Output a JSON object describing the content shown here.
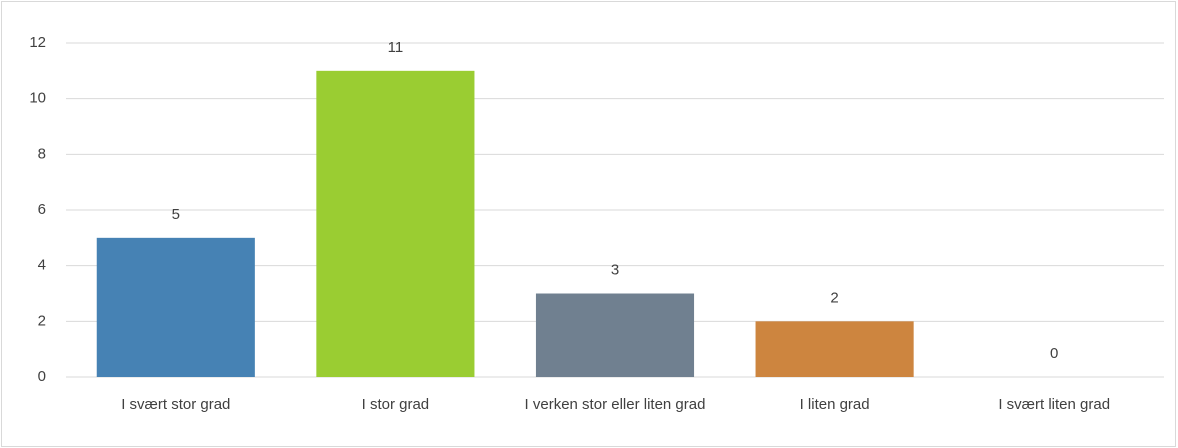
{
  "chart_data": {
    "type": "bar",
    "categories": [
      "I svært stor grad",
      "I stor grad",
      "I verken stor eller liten grad",
      "I liten grad",
      "I svært liten grad"
    ],
    "values": [
      5,
      11,
      3,
      2,
      0
    ],
    "colors": [
      "#4682b4",
      "#9acd32",
      "#708090",
      "#cd853f",
      "#b0c4de"
    ],
    "ylim": [
      0,
      12
    ],
    "yticks": [
      0,
      2,
      4,
      6,
      8,
      10,
      12
    ],
    "grid": true
  }
}
